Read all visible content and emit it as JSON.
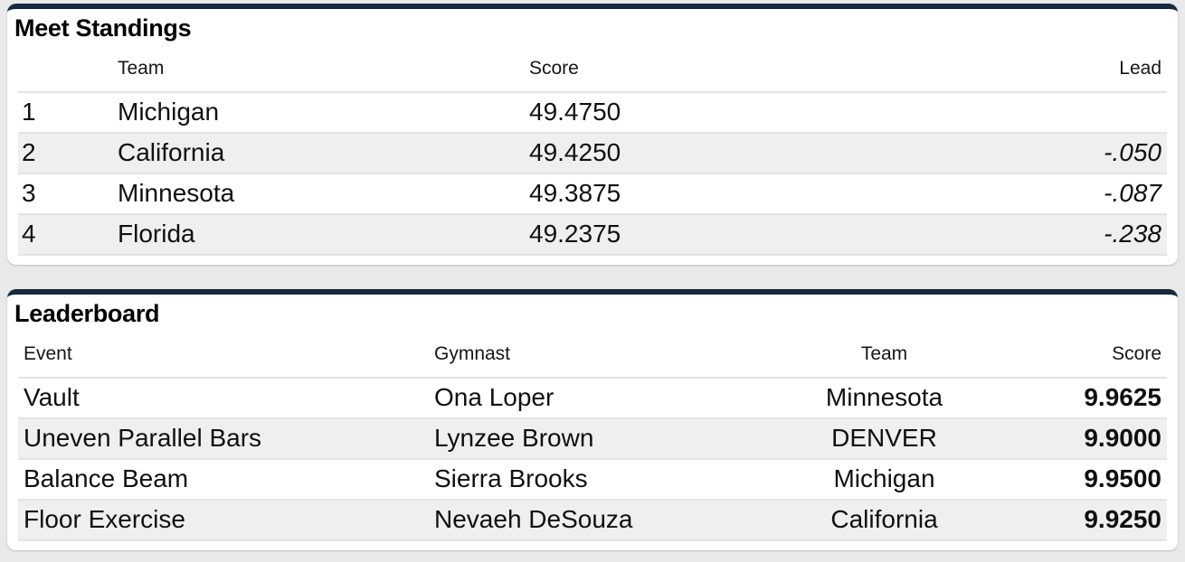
{
  "page": {
    "background_color": "#e9e9e9",
    "card_background_color": "#ffffff",
    "accent_color": "#16293e",
    "alt_row_color": "#efefef"
  },
  "standings": {
    "title": "Meet Standings",
    "columns": {
      "rank": "",
      "team": "Team",
      "score": "Score",
      "lead": "Lead"
    },
    "rows": [
      {
        "rank": "1",
        "team": "Michigan",
        "score": "49.4750",
        "lead": ""
      },
      {
        "rank": "2",
        "team": "California",
        "score": "49.4250",
        "lead": "-.050"
      },
      {
        "rank": "3",
        "team": "Minnesota",
        "score": "49.3875",
        "lead": "-.087"
      },
      {
        "rank": "4",
        "team": "Florida",
        "score": "49.2375",
        "lead": "-.238"
      }
    ]
  },
  "leaderboard": {
    "title": "Leaderboard",
    "columns": {
      "event": "Event",
      "gymnast": "Gymnast",
      "team": "Team",
      "score": "Score"
    },
    "rows": [
      {
        "event": "Vault",
        "gymnast": "Ona Loper",
        "team": "Minnesota",
        "score": "9.9625"
      },
      {
        "event": "Uneven Parallel Bars",
        "gymnast": "Lynzee Brown",
        "team": "DENVER",
        "score": "9.9000"
      },
      {
        "event": "Balance Beam",
        "gymnast": "Sierra Brooks",
        "team": "Michigan",
        "score": "9.9500"
      },
      {
        "event": "Floor Exercise",
        "gymnast": "Nevaeh DeSouza",
        "team": "California",
        "score": "9.9250"
      }
    ]
  }
}
